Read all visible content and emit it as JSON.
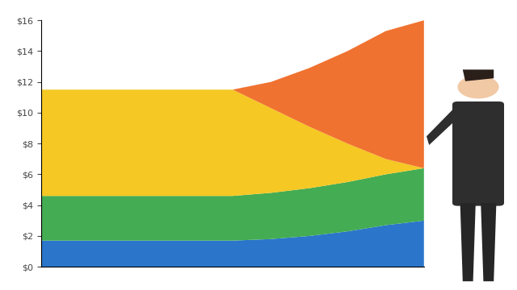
{
  "chart_data": {
    "type": "area",
    "stacked": true,
    "grid": false,
    "tick_labels": "y",
    "x": [
      0,
      1,
      2,
      3,
      4,
      5,
      6,
      7,
      8,
      9,
      10
    ],
    "xlim": [
      0,
      10
    ],
    "ylim": [
      0,
      16
    ],
    "yticks": [
      {
        "value": 0,
        "label": "$0"
      },
      {
        "value": 2,
        "label": "$2"
      },
      {
        "value": 4,
        "label": "$4"
      },
      {
        "value": 6,
        "label": "$6"
      },
      {
        "value": 8,
        "label": "$8"
      },
      {
        "value": 10,
        "label": "$10"
      },
      {
        "value": 12,
        "label": "$12"
      },
      {
        "value": 14,
        "label": "$14"
      },
      {
        "value": 16,
        "label": "$16"
      }
    ],
    "series": [
      {
        "color": "#1f6fc9",
        "values": [
          1.7,
          1.7,
          1.7,
          1.7,
          1.7,
          1.7,
          1.8,
          2.0,
          2.3,
          2.7,
          3.0
        ]
      },
      {
        "color": "#3aa84a",
        "values": [
          2.9,
          2.9,
          2.9,
          2.9,
          2.9,
          2.9,
          3.0,
          3.1,
          3.2,
          3.3,
          3.4
        ]
      },
      {
        "color": "#f5c518",
        "values": [
          6.9,
          6.9,
          6.9,
          6.9,
          6.9,
          6.9,
          5.5,
          4.0,
          2.5,
          1.0,
          0.0
        ]
      },
      {
        "color": "#f06a25",
        "values": [
          0.0,
          0.0,
          0.0,
          0.0,
          0.0,
          0.0,
          1.7,
          3.8,
          6.0,
          8.3,
          9.6
        ]
      }
    ]
  }
}
